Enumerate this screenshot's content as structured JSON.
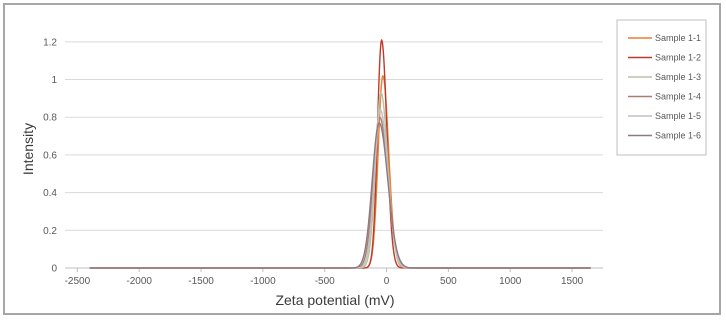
{
  "chart_data": {
    "type": "line",
    "title": "",
    "xlabel": "Zeta potential (mV)",
    "ylabel": "Intensity",
    "xlim": [
      -2600,
      1750
    ],
    "ylim": [
      0,
      1.3
    ],
    "x_ticks": [
      -2500,
      -2000,
      -1500,
      -1000,
      -500,
      0,
      500,
      1000,
      1500
    ],
    "y_ticks": [
      0,
      0.2,
      0.4,
      0.6,
      0.8,
      1,
      1.2
    ],
    "y_tick_labels": [
      "0",
      "0.2",
      "0.4",
      "0.6",
      "0.8",
      "1",
      "1.2"
    ],
    "grid": "horizontal",
    "legend_position": "right",
    "x_range_of_curves": [
      -2400,
      1650
    ],
    "series": [
      {
        "name": "Sample 1-1",
        "color": "#ed7d31",
        "peak_x": -30,
        "peak_y": 1.02,
        "width": 38
      },
      {
        "name": "Sample 1-2",
        "color": "#c0392b",
        "peak_x": -40,
        "peak_y": 1.21,
        "width": 34
      },
      {
        "name": "Sample 1-3",
        "color": "#b5c4a5",
        "peak_x": -45,
        "peak_y": 0.93,
        "width": 44
      },
      {
        "name": "Sample 1-4",
        "color": "#b07b6e",
        "peak_x": -55,
        "peak_y": 0.8,
        "width": 52
      },
      {
        "name": "Sample 1-5",
        "color": "#c0c0c0",
        "peak_x": -50,
        "peak_y": 0.84,
        "width": 48
      },
      {
        "name": "Sample 1-6",
        "color": "#8c7b80",
        "peak_x": -60,
        "peak_y": 0.77,
        "width": 56
      }
    ]
  }
}
